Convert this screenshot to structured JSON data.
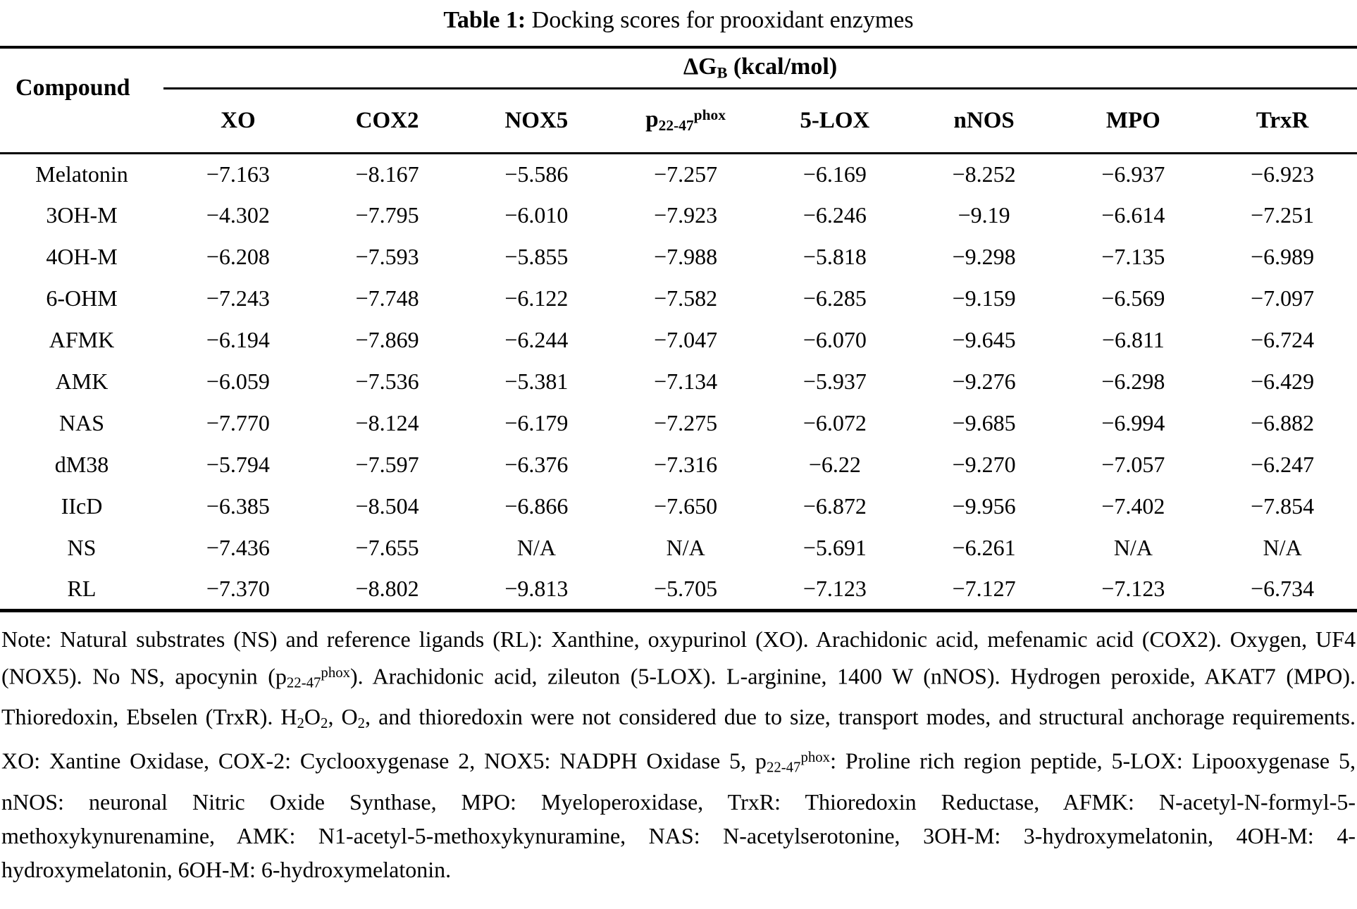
{
  "title": {
    "label": "Table 1:",
    "text": " Docking scores for prooxidant enzymes"
  },
  "table": {
    "compound_header": "Compound",
    "group_header_segments": [
      {
        "t": "ΔG"
      },
      {
        "t": "B",
        "s": "sub"
      },
      {
        "t": " (kcal/mol)"
      }
    ],
    "columns": [
      {
        "segments": [
          {
            "t": "XO"
          }
        ]
      },
      {
        "segments": [
          {
            "t": "COX2"
          }
        ]
      },
      {
        "segments": [
          {
            "t": "NOX5"
          }
        ]
      },
      {
        "segments": [
          {
            "t": "p"
          },
          {
            "t": "22-47",
            "s": "sub"
          },
          {
            "t": "phox",
            "s": "sup"
          }
        ]
      },
      {
        "segments": [
          {
            "t": "5-LOX"
          }
        ]
      },
      {
        "segments": [
          {
            "t": "nNOS"
          }
        ]
      },
      {
        "segments": [
          {
            "t": "MPO"
          }
        ]
      },
      {
        "segments": [
          {
            "t": "TrxR"
          }
        ]
      }
    ],
    "rows": [
      {
        "compound": "Melatonin",
        "values": [
          "−7.163",
          "−8.167",
          "−5.586",
          "−7.257",
          "−6.169",
          "−8.252",
          "−6.937",
          "−6.923"
        ]
      },
      {
        "compound": "3OH-M",
        "values": [
          "−4.302",
          "−7.795",
          "−6.010",
          "−7.923",
          "−6.246",
          "−9.19",
          "−6.614",
          "−7.251"
        ]
      },
      {
        "compound": "4OH-M",
        "values": [
          "−6.208",
          "−7.593",
          "−5.855",
          "−7.988",
          "−5.818",
          "−9.298",
          "−7.135",
          "−6.989"
        ]
      },
      {
        "compound": "6-OHM",
        "values": [
          "−7.243",
          "−7.748",
          "−6.122",
          "−7.582",
          "−6.285",
          "−9.159",
          "−6.569",
          "−7.097"
        ]
      },
      {
        "compound": "AFMK",
        "values": [
          "−6.194",
          "−7.869",
          "−6.244",
          "−7.047",
          "−6.070",
          "−9.645",
          "−6.811",
          "−6.724"
        ]
      },
      {
        "compound": "AMK",
        "values": [
          "−6.059",
          "−7.536",
          "−5.381",
          "−7.134",
          "−5.937",
          "−9.276",
          "−6.298",
          "−6.429"
        ]
      },
      {
        "compound": "NAS",
        "values": [
          "−7.770",
          "−8.124",
          "−6.179",
          "−7.275",
          "−6.072",
          "−9.685",
          "−6.994",
          "−6.882"
        ]
      },
      {
        "compound": "dM38",
        "values": [
          "−5.794",
          "−7.597",
          "−6.376",
          "−7.316",
          "−6.22",
          "−9.270",
          "−7.057",
          "−6.247"
        ]
      },
      {
        "compound": "IIcD",
        "values": [
          "−6.385",
          "−8.504",
          "−6.866",
          "−7.650",
          "−6.872",
          "−9.956",
          "−7.402",
          "−7.854"
        ]
      },
      {
        "compound": "NS",
        "values": [
          "−7.436",
          "−7.655",
          "N/A",
          "N/A",
          "−5.691",
          "−6.261",
          "N/A",
          "N/A"
        ]
      },
      {
        "compound": "RL",
        "values": [
          "−7.370",
          "−8.802",
          "−9.813",
          "−5.705",
          "−7.123",
          "−7.127",
          "−7.123",
          "−6.734"
        ]
      }
    ]
  },
  "note": {
    "segments": [
      {
        "t": "Note: Natural substrates (NS) and reference ligands (RL): Xanthine, oxypurinol (XO). Arachidonic acid, mefenamic acid (COX2). Oxygen, UF4 (NOX5). No NS, apocynin (p"
      },
      {
        "t": "22-47",
        "s": "sub"
      },
      {
        "t": "phox",
        "s": "sup"
      },
      {
        "t": "). Arachidonic acid, zileuton (5-LOX). L-arginine, 1400 W (nNOS). Hydrogen peroxide, AKAT7 (MPO). Thioredoxin, Ebselen (TrxR). H"
      },
      {
        "t": "2",
        "s": "sub"
      },
      {
        "t": "O"
      },
      {
        "t": "2",
        "s": "sub"
      },
      {
        "t": ", O"
      },
      {
        "t": "2",
        "s": "sub"
      },
      {
        "t": ", and thioredoxin were not considered due to size, transport modes, and structural anchorage requirements. XO: Xantine Oxidase, COX-2: Cyclooxygenase 2, NOX5: NADPH Oxidase 5, p"
      },
      {
        "t": "22-47",
        "s": "sub"
      },
      {
        "t": "phox",
        "s": "sup"
      },
      {
        "t": ": Proline rich region peptide, 5-LOX: Lipooxygenase 5, nNOS: neuronal Nitric Oxide Synthase, MPO: Myeloperoxidase, TrxR: Thioredoxin Reductase, AFMK: N-acetyl-N-formyl-5-methoxykynurenamine, AMK: N1-acetyl-5-methoxykynuramine, NAS: N-acetylserotonine, 3OH-M: 3-hydroxymelatonin, 4OH-M: 4-hydroxymelatonin, 6OH-M: 6-hydroxymelatonin."
      }
    ]
  },
  "colors": {
    "text": "#000000",
    "background": "#ffffff",
    "rule": "#000000"
  }
}
